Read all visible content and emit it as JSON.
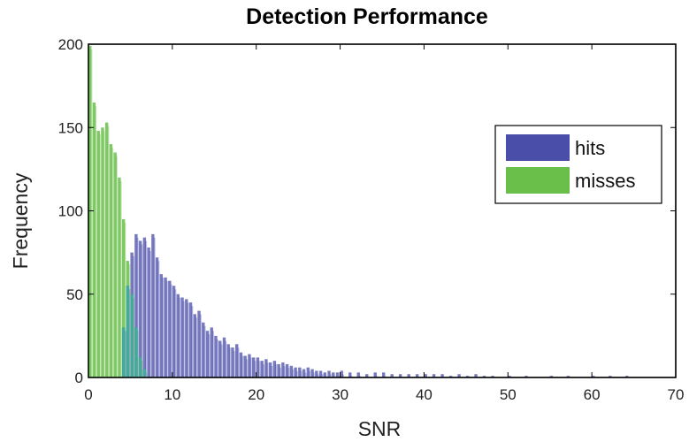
{
  "chart_data": {
    "type": "bar",
    "title": "Detection Performance",
    "xlabel": "SNR",
    "ylabel": "Frequency",
    "xlim": [
      0,
      70
    ],
    "ylim": [
      0,
      200
    ],
    "xticks": [
      0,
      10,
      20,
      30,
      40,
      50,
      60,
      70
    ],
    "yticks": [
      0,
      50,
      100,
      150,
      200
    ],
    "grid": false,
    "legend_position": "top-right",
    "bin_width": 0.5,
    "overlap_color": "#3fb39b",
    "series": [
      {
        "name": "hits",
        "color": "#4a4ea8",
        "x": [
          4.0,
          4.5,
          5.0,
          5.5,
          6.0,
          6.5,
          7.0,
          7.5,
          8.0,
          8.5,
          9.0,
          9.5,
          10.0,
          10.5,
          11.0,
          11.5,
          12.0,
          12.5,
          13.0,
          13.5,
          14.0,
          14.5,
          15.0,
          15.5,
          16.0,
          16.5,
          17.0,
          17.5,
          18.0,
          18.5,
          19.0,
          19.5,
          20.0,
          20.5,
          21.0,
          21.5,
          22.0,
          22.5,
          23.0,
          23.5,
          24.0,
          24.5,
          25.0,
          25.5,
          26.0,
          26.5,
          27.0,
          27.5,
          28.0,
          28.5,
          29.0,
          29.5,
          30.0,
          31.0,
          32.0,
          33.0,
          34.0,
          35.0,
          36.0,
          37.0,
          38.0,
          39.0,
          40.0,
          41.0,
          42.0,
          43.0,
          44.0,
          45.0,
          46.0,
          47.0,
          48.0,
          50.0,
          52.0,
          55.0,
          57.0,
          60.0,
          62.0,
          64.0
        ],
        "values": [
          30,
          55,
          75,
          86,
          82,
          84,
          78,
          86,
          72,
          62,
          60,
          58,
          55,
          50,
          48,
          47,
          45,
          38,
          40,
          33,
          28,
          30,
          25,
          22,
          24,
          20,
          18,
          20,
          15,
          13,
          14,
          12,
          12,
          10,
          11,
          9,
          10,
          8,
          9,
          8,
          7,
          6,
          6,
          5,
          6,
          5,
          4,
          4,
          3,
          4,
          3,
          3,
          4,
          3,
          3,
          2,
          3,
          3,
          2,
          2,
          2,
          2,
          2,
          2,
          2,
          1,
          2,
          1,
          2,
          1,
          1,
          1,
          1,
          1,
          1,
          1,
          1,
          1
        ]
      },
      {
        "name": "misses",
        "color": "#6abf4b",
        "x": [
          0.0,
          0.5,
          1.0,
          1.5,
          2.0,
          2.5,
          3.0,
          3.5,
          4.0,
          4.5,
          5.0,
          5.5,
          6.0,
          6.5
        ],
        "values": [
          199,
          165,
          148,
          150,
          153,
          140,
          135,
          120,
          95,
          70,
          50,
          30,
          12,
          5
        ]
      }
    ]
  }
}
